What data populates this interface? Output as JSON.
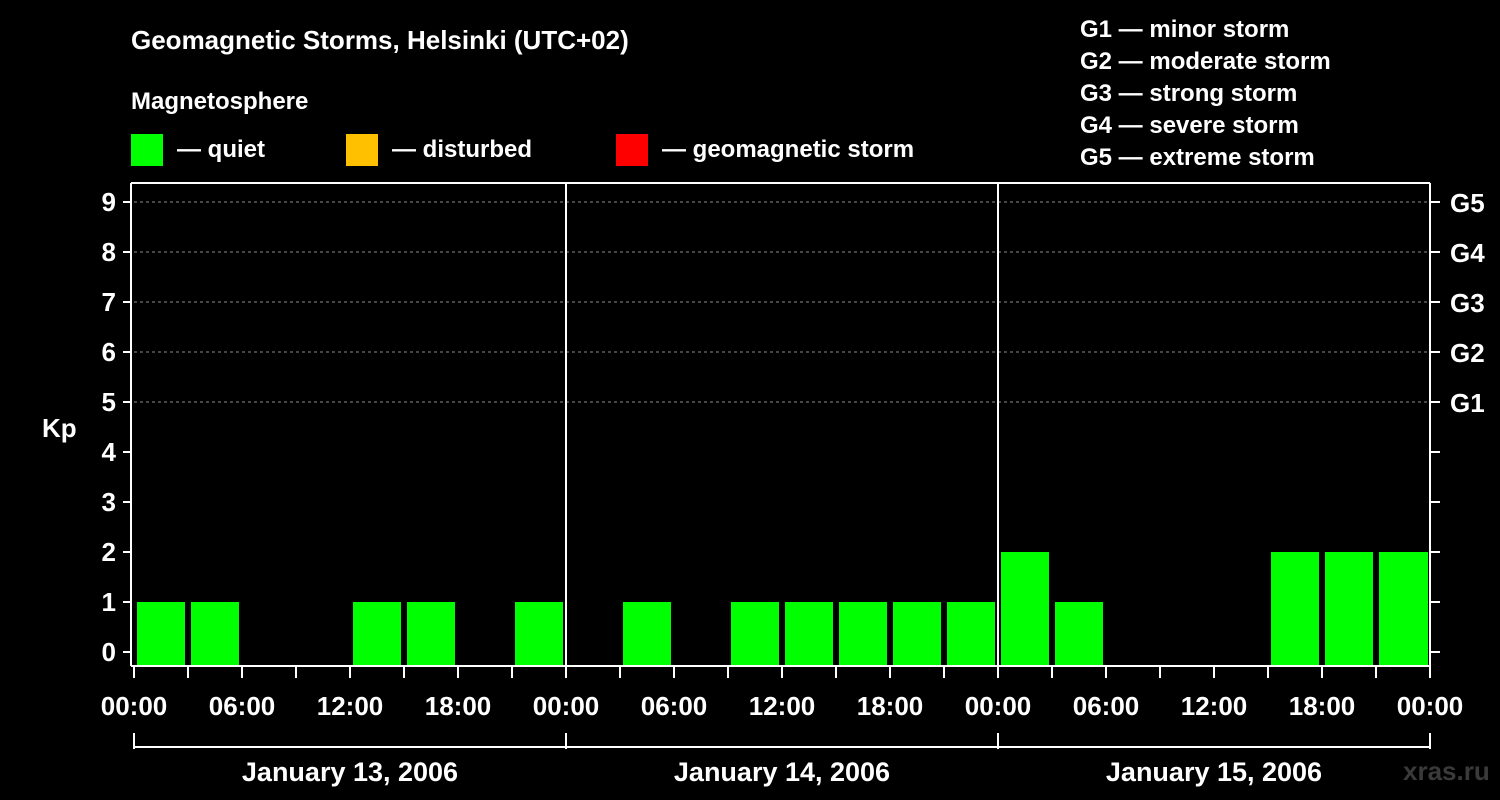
{
  "chart_data": {
    "type": "bar",
    "title": "Geomagnetic Storms, Helsinki (UTC+02)",
    "legend": {
      "heading": "Magnetosphere",
      "items": [
        {
          "color": "#00ff00",
          "label": "— quiet"
        },
        {
          "color": "#ffc000",
          "label": "— disturbed"
        },
        {
          "color": "#ff0000",
          "label": "— geomagnetic storm"
        }
      ]
    },
    "storm_scale": [
      "G1 — minor storm",
      "G2 — moderate storm",
      "G3 — strong storm",
      "G4 — severe storm",
      "G5 — extreme storm"
    ],
    "ylabel": "Kp",
    "ylim": [
      0,
      9
    ],
    "y_ticks": [
      0,
      1,
      2,
      3,
      4,
      5,
      6,
      7,
      8,
      9
    ],
    "right_ticks": [
      {
        "kp": 5,
        "label": "G1"
      },
      {
        "kp": 6,
        "label": "G2"
      },
      {
        "kp": 7,
        "label": "G3"
      },
      {
        "kp": 8,
        "label": "G4"
      },
      {
        "kp": 9,
        "label": "G5"
      }
    ],
    "x_ticks": [
      "00:00",
      "06:00",
      "12:00",
      "18:00",
      "00:00",
      "06:00",
      "12:00",
      "18:00",
      "00:00",
      "06:00",
      "12:00",
      "18:00",
      "00:00"
    ],
    "days": [
      "January 13, 2006",
      "January 14, 2006",
      "January 15, 2006"
    ],
    "interval_hours": 3,
    "first_interval_start": "January 13, 2006 00:00",
    "kp_values": [
      1,
      1,
      0,
      0,
      1,
      1,
      0,
      1,
      0,
      1,
      0,
      1,
      1,
      1,
      1,
      1,
      2,
      1,
      0,
      0,
      0,
      2,
      2,
      2
    ],
    "bar_color": "#00ff00",
    "grid": "dashed at Kp 5-9"
  },
  "watermark": "xras.ru"
}
